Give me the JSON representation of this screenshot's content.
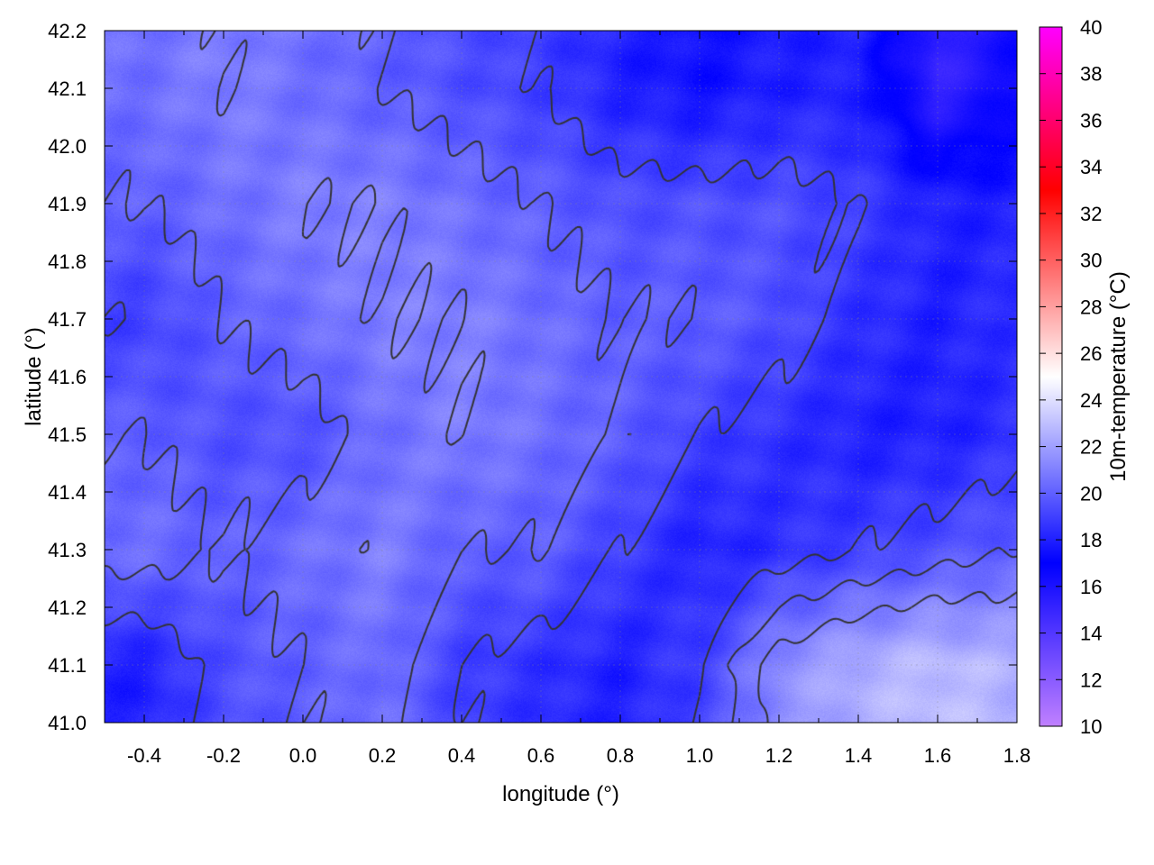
{
  "chart_data": {
    "type": "heatmap",
    "xlabel": "longitude (°)",
    "ylabel": "latitude (°)",
    "colorbar_label": "10m-temperature (°C)",
    "xlim": [
      -0.5,
      1.8
    ],
    "ylim": [
      41.0,
      42.2
    ],
    "zlim": [
      10,
      40
    ],
    "xticks": [
      "-0.4",
      "-0.2",
      "0.0",
      "0.2",
      "0.4",
      "0.6",
      "0.8",
      "1.0",
      "1.2",
      "1.4",
      "1.6",
      "1.8"
    ],
    "yticks": [
      "41.0",
      "41.1",
      "41.2",
      "41.3",
      "41.4",
      "41.5",
      "41.6",
      "41.7",
      "41.8",
      "41.9",
      "42.0",
      "42.1",
      "42.2"
    ],
    "cbticks": [
      "10",
      "12",
      "14",
      "16",
      "18",
      "20",
      "22",
      "24",
      "26",
      "28",
      "30",
      "32",
      "34",
      "36",
      "38",
      "40"
    ],
    "grid": true,
    "colormap": [
      [
        10,
        "#c080ff"
      ],
      [
        17,
        "#0000ff"
      ],
      [
        25,
        "#ffffff"
      ],
      [
        33,
        "#ff0000"
      ],
      [
        40,
        "#ff00ff"
      ]
    ],
    "contour_color": "#333333",
    "contour_levels": [
      19,
      20,
      21
    ],
    "grid_lon": [
      -0.4,
      -0.2,
      0.0,
      0.2,
      0.4,
      0.6,
      0.8,
      1.0,
      1.2,
      1.4,
      1.6,
      1.8
    ],
    "grid_lat": [
      42.1,
      41.9,
      41.7,
      41.5,
      41.3,
      41.1
    ],
    "values": [
      [
        20.5,
        21.0,
        20.5,
        20.0,
        19.5,
        19.0,
        18.0,
        17.5,
        18.0,
        18.0,
        15.0,
        16.5
      ],
      [
        20.0,
        20.5,
        21.0,
        21.0,
        20.5,
        20.0,
        19.5,
        19.5,
        19.5,
        19.0,
        18.0,
        18.0
      ],
      [
        19.0,
        20.0,
        20.5,
        21.0,
        21.0,
        20.5,
        20.0,
        20.0,
        19.5,
        18.5,
        18.0,
        18.5
      ],
      [
        20.0,
        19.5,
        19.5,
        20.5,
        21.0,
        20.5,
        20.0,
        19.0,
        18.5,
        18.0,
        18.0,
        18.5
      ],
      [
        20.5,
        20.0,
        20.5,
        21.0,
        20.0,
        20.0,
        19.0,
        18.0,
        18.5,
        19.0,
        19.5,
        20.0
      ],
      [
        18.0,
        19.5,
        20.0,
        20.5,
        19.0,
        18.5,
        18.0,
        19.0,
        21.5,
        22.5,
        23.0,
        22.5
      ]
    ]
  }
}
